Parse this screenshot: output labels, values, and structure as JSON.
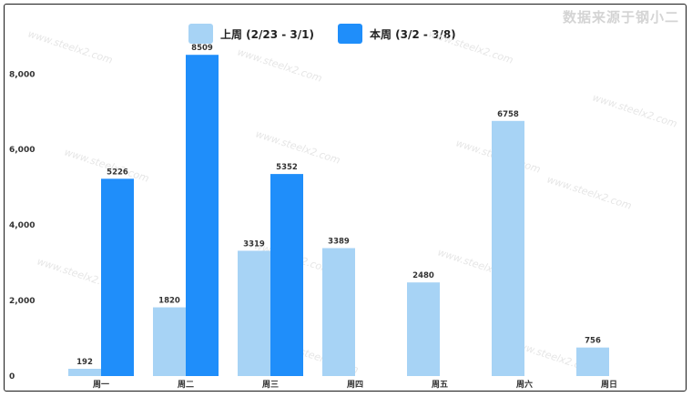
{
  "source_label": "数据来源于钢小二",
  "chart_data": {
    "type": "bar",
    "categories": [
      "周一",
      "周二",
      "周三",
      "周四",
      "周五",
      "周六",
      "周日"
    ],
    "series": [
      {
        "name": "上周 (2/23 - 3/1)",
        "color": "#a7d3f5",
        "values": [
          192,
          1820,
          3319,
          3389,
          2480,
          6758,
          756
        ]
      },
      {
        "name": "本周 (3/2 - 3/8)",
        "color": "#1f8efa",
        "values": [
          5226,
          8509,
          5352,
          null,
          null,
          null,
          null
        ]
      }
    ],
    "ylim": [
      0,
      8900
    ],
    "yticks": [
      0,
      2000,
      4000,
      6000,
      8000
    ],
    "ytick_labels": [
      "0",
      "2,000",
      "4,000",
      "6,000",
      "8,000"
    ],
    "watermark": "www.steelx2.com",
    "legend_position": "top-center",
    "grid": false
  }
}
